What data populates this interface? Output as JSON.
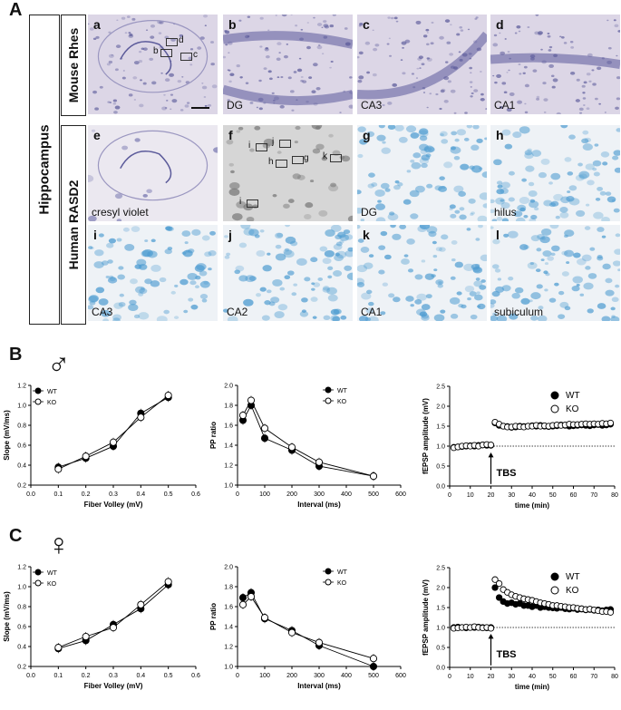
{
  "panel_labels": {
    "A": "A",
    "B": "B",
    "C": "C"
  },
  "side_labels": {
    "hippocampus": "Hippocampus",
    "mouse": "Mouse Rhes",
    "human": "Human RASD2"
  },
  "tiles": [
    {
      "id": "a",
      "caption": ""
    },
    {
      "id": "b",
      "caption": "DG"
    },
    {
      "id": "c",
      "caption": "CA3"
    },
    {
      "id": "d",
      "caption": "CA1"
    },
    {
      "id": "e",
      "caption": "cresyl violet"
    },
    {
      "id": "f",
      "caption": ""
    },
    {
      "id": "g",
      "caption": "DG"
    },
    {
      "id": "h",
      "caption": "hilus"
    },
    {
      "id": "i",
      "caption": "CA3"
    },
    {
      "id": "j",
      "caption": "CA2"
    },
    {
      "id": "k",
      "caption": "CA1"
    },
    {
      "id": "l",
      "caption": "subiculum"
    }
  ],
  "insets_a": [
    "d",
    "b",
    "c"
  ],
  "insets_f": [
    "j",
    "i",
    "h",
    "g",
    "k",
    "i"
  ],
  "sex_symbols": {
    "male": "♂",
    "female": "♀"
  },
  "colors": {
    "mouse_tissue": "#dcd6e6",
    "mouse_stain": "#5b5a9a",
    "human_tissue": "#eef2f6",
    "human_stain": "#4a9ad0",
    "bw": "#d6d6d6"
  },
  "chart_data": [
    {
      "id": "B1",
      "type": "line",
      "xlabel": "Fiber Volley (mV)",
      "ylabel": "Slope (mV/ms)",
      "xlim": [
        0,
        0.6
      ],
      "ylim": [
        0.2,
        1.2
      ],
      "xticks": [
        "0.0",
        "0.1",
        "0.2",
        "0.3",
        "0.4",
        "0.5",
        "0.6"
      ],
      "yticks": [
        "0.2",
        "0.4",
        "0.6",
        "0.8",
        "1.0",
        "1.2"
      ],
      "series": [
        {
          "name": "WT",
          "x": [
            0.1,
            0.2,
            0.3,
            0.4,
            0.5
          ],
          "y": [
            0.38,
            0.47,
            0.59,
            0.92,
            1.08
          ]
        },
        {
          "name": "KO",
          "x": [
            0.1,
            0.2,
            0.3,
            0.4,
            0.5
          ],
          "y": [
            0.36,
            0.49,
            0.63,
            0.88,
            1.1
          ]
        }
      ]
    },
    {
      "id": "B2",
      "type": "line",
      "xlabel": "Interval (ms)",
      "ylabel": "PP ratio",
      "xlim": [
        0,
        600
      ],
      "ylim": [
        1.0,
        2.0
      ],
      "xticks": [
        "0",
        "100",
        "200",
        "300",
        "400",
        "500",
        "600"
      ],
      "yticks": [
        "1.0",
        "1.2",
        "1.4",
        "1.6",
        "1.8",
        "2.0"
      ],
      "series": [
        {
          "name": "WT",
          "x": [
            20,
            50,
            100,
            200,
            300,
            500
          ],
          "y": [
            1.65,
            1.8,
            1.47,
            1.35,
            1.19,
            1.09
          ]
        },
        {
          "name": "KO",
          "x": [
            20,
            50,
            100,
            200,
            300,
            500
          ],
          "y": [
            1.7,
            1.85,
            1.57,
            1.38,
            1.23,
            1.09
          ]
        }
      ]
    },
    {
      "id": "B3",
      "type": "scatter",
      "xlabel": "time (min)",
      "ylabel": "fEPSP amplitude (mV)",
      "xlim": [
        0,
        80
      ],
      "ylim": [
        0,
        2.5
      ],
      "xticks": [
        "0",
        "10",
        "20",
        "30",
        "40",
        "50",
        "60",
        "70",
        "80"
      ],
      "yticks": [
        "0.0",
        "0.5",
        "1.0",
        "1.5",
        "2.0",
        "2.5"
      ],
      "annotation": "TBS",
      "tbs_at": 20,
      "series": [
        {
          "name": "WT",
          "x": [
            2,
            4,
            6,
            8,
            10,
            12,
            14,
            16,
            18,
            20,
            22,
            24,
            26,
            28,
            30,
            32,
            34,
            36,
            38,
            40,
            42,
            44,
            46,
            48,
            50,
            52,
            54,
            56,
            58,
            60,
            62,
            64,
            66,
            68,
            70,
            72,
            74,
            76,
            78
          ],
          "y": [
            0.97,
            0.98,
            0.99,
            1.0,
            1.01,
            1.0,
            1.02,
            1.03,
            1.02,
            1.02,
            1.58,
            1.52,
            1.5,
            1.49,
            1.47,
            1.48,
            1.5,
            1.49,
            1.5,
            1.51,
            1.5,
            1.52,
            1.5,
            1.49,
            1.5,
            1.51,
            1.53,
            1.52,
            1.5,
            1.51,
            1.52,
            1.53,
            1.52,
            1.51,
            1.53,
            1.54,
            1.52,
            1.53,
            1.55
          ]
        },
        {
          "name": "KO",
          "x": [
            2,
            4,
            6,
            8,
            10,
            12,
            14,
            16,
            18,
            20,
            22,
            24,
            26,
            28,
            30,
            32,
            34,
            36,
            38,
            40,
            42,
            44,
            46,
            48,
            50,
            52,
            54,
            56,
            58,
            60,
            62,
            64,
            66,
            68,
            70,
            72,
            74,
            76,
            78
          ],
          "y": [
            0.96,
            0.98,
            1.0,
            1.01,
            1.0,
            1.02,
            1.0,
            1.03,
            1.04,
            1.03,
            1.6,
            1.55,
            1.5,
            1.48,
            1.48,
            1.5,
            1.49,
            1.48,
            1.5,
            1.5,
            1.52,
            1.5,
            1.51,
            1.5,
            1.52,
            1.53,
            1.52,
            1.53,
            1.55,
            1.54,
            1.54,
            1.55,
            1.56,
            1.55,
            1.56,
            1.55,
            1.57,
            1.56,
            1.58
          ]
        }
      ]
    },
    {
      "id": "C1",
      "type": "line",
      "xlabel": "Fiber Volley (mV)",
      "ylabel": "Slope (mV/ms)",
      "xlim": [
        0,
        0.6
      ],
      "ylim": [
        0.2,
        1.2
      ],
      "xticks": [
        "0.0",
        "0.1",
        "0.2",
        "0.3",
        "0.4",
        "0.5",
        "0.6"
      ],
      "yticks": [
        "0.2",
        "0.4",
        "0.6",
        "0.8",
        "1.0",
        "1.2"
      ],
      "series": [
        {
          "name": "WT",
          "x": [
            0.1,
            0.2,
            0.3,
            0.4,
            0.5
          ],
          "y": [
            0.38,
            0.46,
            0.62,
            0.78,
            1.02
          ]
        },
        {
          "name": "KO",
          "x": [
            0.1,
            0.2,
            0.3,
            0.4,
            0.5
          ],
          "y": [
            0.39,
            0.5,
            0.59,
            0.82,
            1.05
          ]
        }
      ]
    },
    {
      "id": "C2",
      "type": "line",
      "xlabel": "Interval (ms)",
      "ylabel": "PP ratio",
      "xlim": [
        0,
        600
      ],
      "ylim": [
        1.0,
        2.0
      ],
      "xticks": [
        "0",
        "100",
        "200",
        "300",
        "400",
        "500",
        "600"
      ],
      "yticks": [
        "1.0",
        "1.2",
        "1.4",
        "1.6",
        "1.8",
        "2.0"
      ],
      "series": [
        {
          "name": "WT",
          "x": [
            20,
            50,
            100,
            200,
            300,
            500
          ],
          "y": [
            1.69,
            1.74,
            1.48,
            1.36,
            1.21,
            1.0
          ]
        },
        {
          "name": "KO",
          "x": [
            20,
            50,
            100,
            200,
            300,
            500
          ],
          "y": [
            1.62,
            1.7,
            1.49,
            1.34,
            1.24,
            1.08
          ]
        }
      ]
    },
    {
      "id": "C3",
      "type": "scatter",
      "xlabel": "time (min)",
      "ylabel": "fEPSP amplitude (mV)",
      "xlim": [
        0,
        80
      ],
      "ylim": [
        0,
        2.5
      ],
      "xticks": [
        "0",
        "10",
        "20",
        "30",
        "40",
        "50",
        "60",
        "70",
        "80"
      ],
      "yticks": [
        "0.0",
        "0.5",
        "1.0",
        "1.5",
        "2.0",
        "2.5"
      ],
      "annotation": "TBS",
      "tbs_at": 20,
      "series": [
        {
          "name": "WT",
          "x": [
            2,
            4,
            6,
            8,
            10,
            12,
            14,
            16,
            18,
            20,
            22,
            24,
            26,
            28,
            30,
            32,
            34,
            36,
            38,
            40,
            42,
            44,
            46,
            48,
            50,
            52,
            54,
            56,
            58,
            60,
            62,
            64,
            66,
            68,
            70,
            72,
            74,
            76,
            78
          ],
          "y": [
            1.0,
            1.01,
            1.0,
            0.99,
            1.0,
            1.0,
            1.01,
            1.0,
            0.99,
            1.0,
            2.0,
            1.75,
            1.65,
            1.6,
            1.62,
            1.58,
            1.6,
            1.55,
            1.55,
            1.52,
            1.55,
            1.5,
            1.52,
            1.5,
            1.49,
            1.48,
            1.5,
            1.47,
            1.46,
            1.48,
            1.45,
            1.46,
            1.44,
            1.45,
            1.43,
            1.44,
            1.42,
            1.44,
            1.45
          ]
        },
        {
          "name": "KO",
          "x": [
            2,
            4,
            6,
            8,
            10,
            12,
            14,
            16,
            18,
            20,
            22,
            24,
            26,
            28,
            30,
            32,
            34,
            36,
            38,
            40,
            42,
            44,
            46,
            48,
            50,
            52,
            54,
            56,
            58,
            60,
            62,
            64,
            66,
            68,
            70,
            72,
            74,
            76,
            78
          ],
          "y": [
            0.98,
            0.99,
            1.0,
            1.01,
            1.0,
            1.02,
            1.0,
            0.99,
            1.0,
            0.98,
            2.2,
            2.1,
            1.95,
            1.88,
            1.82,
            1.78,
            1.75,
            1.72,
            1.7,
            1.68,
            1.65,
            1.62,
            1.6,
            1.58,
            1.55,
            1.55,
            1.53,
            1.52,
            1.5,
            1.5,
            1.48,
            1.47,
            1.45,
            1.46,
            1.44,
            1.42,
            1.4,
            1.4,
            1.38
          ]
        }
      ]
    }
  ]
}
